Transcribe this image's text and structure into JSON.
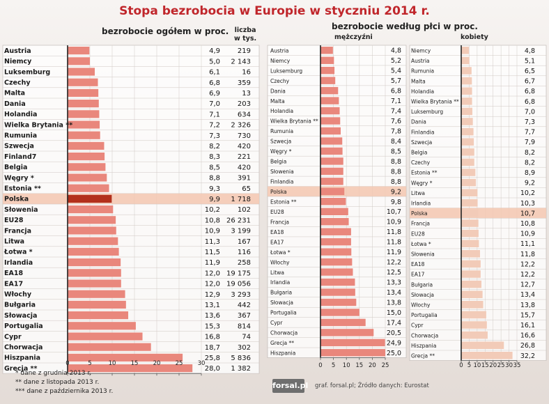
{
  "title": "Stopa bezrobocia w Europie w styczniu 2014 r.",
  "header_overall": "bezrobocie ogółem w proc.",
  "header_thousands": "liczba\nw tys.",
  "header_gender": "bezrobocie według płci w proc.",
  "header_men": "mężczyźni",
  "header_women": "kobiety",
  "notes": [
    "* dane z grudnia 2013 r.",
    "** dane z listopada 2013 r.",
    "*** dane z października 2013 r."
  ],
  "logo": "forsal.pl",
  "source": "graf. forsal.pl; Źródło danych: Eurostat",
  "colors": {
    "title": "#c0262b",
    "bar": "#e9877c",
    "highlight_bar": "#b3301c",
    "highlight_row": "#f3c7b0",
    "men_bar": "#e9877c",
    "women_bar": "#f2cbb8"
  },
  "chart_data": [
    {
      "type": "bar",
      "orientation": "horizontal",
      "title": "bezrobocie ogółem w proc.",
      "categories": [
        "Austria",
        "Niemcy",
        "Luksemburg",
        "Czechy",
        "Malta",
        "Dania",
        "Holandia",
        "Wielka Brytania **",
        "Rumunia",
        "Szwecja",
        "Finland7",
        "Belgia",
        "Węgry *",
        "Estonia **",
        "Polska",
        "Słowenia",
        "EU28",
        "Francja",
        "Litwa",
        "Łotwa *",
        "Irlandia",
        "EA18",
        "EA17",
        "Włochy",
        "Bułgaria",
        "Słowacja",
        "Portugalia",
        "Cypr",
        "Chorwacja",
        "Hiszpania",
        "Grecja **"
      ],
      "values": [
        4.9,
        5.0,
        6.1,
        6.8,
        6.9,
        7.0,
        7.1,
        7.2,
        7.3,
        8.2,
        8.3,
        8.5,
        8.8,
        9.3,
        9.9,
        10.2,
        10.8,
        10.9,
        11.3,
        11.5,
        11.9,
        12.0,
        12.0,
        12.9,
        13.1,
        13.6,
        15.3,
        16.8,
        18.7,
        25.8,
        28.0
      ],
      "value_labels": [
        "4,9",
        "5,0",
        "6,1",
        "6,8",
        "6,9",
        "7,0",
        "7,1",
        "7,2",
        "7,3",
        "8,2",
        "8,3",
        "8,5",
        "8,8",
        "9,3",
        "9,9",
        "10,2",
        "10,8",
        "10,9",
        "11,3",
        "11,5",
        "11,9",
        "12,0",
        "12,0",
        "12,9",
        "13,1",
        "13,6",
        "15,3",
        "16,8",
        "18,7",
        "25,8",
        "28,0"
      ],
      "thousands_labels": [
        "219",
        "2 143",
        "16",
        "359",
        "13",
        "203",
        "634",
        "2 326",
        "730",
        "420",
        "221",
        "420",
        "391",
        "65",
        "1 718",
        "102",
        "26 231",
        "3 199",
        "167",
        "116",
        "258",
        "19 175",
        "19 056",
        "3 293",
        "442",
        "367",
        "814",
        "74",
        "302",
        "5 836",
        "1 382"
      ],
      "highlight": "Polska",
      "xlim": [
        0,
        30
      ],
      "xticks": [
        "0",
        "5",
        "10",
        "15",
        "20",
        "25",
        "30"
      ]
    },
    {
      "type": "bar",
      "orientation": "horizontal",
      "title": "mężczyźni",
      "categories": [
        "Austria",
        "Niemcy",
        "Luksemburg",
        "Czechy",
        "Dania",
        "Malta",
        "Holandia",
        "Wielka Brytania **",
        "Rumunia",
        "Szwecja",
        "Węgry *",
        "Belgia",
        "Słowenia",
        "Finlandia",
        "Polska",
        "Estonia **",
        "EU28",
        "Francja",
        "EA18",
        "EA17",
        "Łotwa *",
        "Włochy",
        "Litwa",
        "Irlandia",
        "Bułgaria",
        "Słowacja",
        "Portugalia",
        "Cypr",
        "Chorwacja",
        "Grecja **",
        "Hiszpania"
      ],
      "values": [
        4.8,
        5.2,
        5.4,
        5.7,
        6.8,
        7.1,
        7.4,
        7.6,
        7.8,
        8.4,
        8.5,
        8.8,
        8.8,
        8.8,
        9.2,
        9.8,
        10.7,
        10.9,
        11.8,
        11.8,
        11.9,
        12.2,
        12.5,
        13.3,
        13.4,
        13.8,
        15.0,
        17.4,
        20.5,
        24.9,
        25.0
      ],
      "value_labels": [
        "4,8",
        "5,2",
        "5,4",
        "5,7",
        "6,8",
        "7,1",
        "7,4",
        "7,6",
        "7,8",
        "8,4",
        "8,5",
        "8,8",
        "8,8",
        "8,8",
        "9,2",
        "9,8",
        "10,7",
        "10,9",
        "11,8",
        "11,8",
        "11,9",
        "12,2",
        "12,5",
        "13,3",
        "13,4",
        "13,8",
        "15,0",
        "17,4",
        "20,5",
        "24,9",
        "25,0"
      ],
      "highlight": "Polska",
      "xlim": [
        0,
        25
      ],
      "xticks": [
        "0",
        "5",
        "10",
        "15",
        "20",
        "25"
      ]
    },
    {
      "type": "bar",
      "orientation": "horizontal",
      "title": "kobiety",
      "categories": [
        "Niemcy",
        "Austria",
        "Rumunia",
        "Malta",
        "Holandia",
        "Wielka Brytania **",
        "Luksemburg",
        "Dania",
        "Finlandia",
        "Szwecja",
        "Belgia",
        "Czechy",
        "Estonia **",
        "Węgry *",
        "Litwa",
        "Irlandia",
        "Polska",
        "Francja",
        "EU28",
        "Łotwa *",
        "Słowenia",
        "EA18",
        "EA17",
        "Bułgaria",
        "Słowacja",
        "Włochy",
        "Portugalia",
        "Cypr",
        "Chorwacja",
        "Hiszpania",
        "Grecja **"
      ],
      "values": [
        4.8,
        5.1,
        6.5,
        6.7,
        6.8,
        6.8,
        7.0,
        7.3,
        7.7,
        7.9,
        8.2,
        8.2,
        8.9,
        9.2,
        10.2,
        10.3,
        10.7,
        10.8,
        10.9,
        11.1,
        11.8,
        12.2,
        12.2,
        12.7,
        13.4,
        13.8,
        15.7,
        16.1,
        16.6,
        26.8,
        32.2
      ],
      "value_labels": [
        "4,8",
        "5,1",
        "6,5",
        "6,7",
        "6,8",
        "6,8",
        "7,0",
        "7,3",
        "7,7",
        "7,9",
        "8,2",
        "8,2",
        "8,9",
        "9,2",
        "10,2",
        "10,3",
        "10,7",
        "10,8",
        "10,9",
        "11,1",
        "11,8",
        "12,2",
        "12,2",
        "12,7",
        "13,4",
        "13,8",
        "15,7",
        "16,1",
        "16,6",
        "26,8",
        "32,2"
      ],
      "highlight": "Polska",
      "xlim": [
        0,
        35
      ],
      "xticks": [
        "0",
        "5",
        "10",
        "15",
        "20",
        "25",
        "30",
        "35"
      ]
    }
  ]
}
